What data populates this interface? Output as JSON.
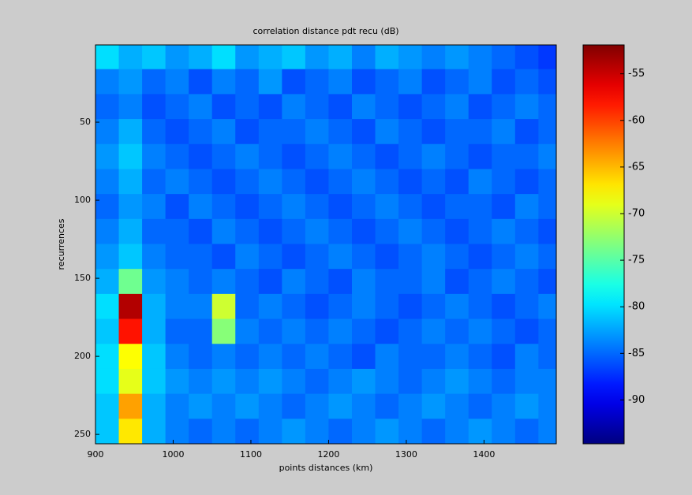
{
  "chart_data": {
    "type": "heatmap",
    "title": "correlation distance pdt recu (dB)",
    "xlabel": "points distances (km)",
    "ylabel": "recurrences",
    "x": [
      915,
      945,
      975,
      1005,
      1035,
      1065,
      1095,
      1125,
      1155,
      1185,
      1215,
      1245,
      1275,
      1305,
      1335,
      1365,
      1395,
      1425,
      1455,
      1485
    ],
    "y": [
      8,
      24,
      40,
      56,
      72,
      88,
      104,
      120,
      136,
      152,
      168,
      184,
      200,
      216,
      232,
      248
    ],
    "values": [
      [
        -80,
        -82,
        -81,
        -83,
        -82,
        -80,
        -83,
        -82,
        -81,
        -83,
        -82,
        -84,
        -82,
        -83,
        -84,
        -83,
        -84,
        -85,
        -86,
        -87
      ],
      [
        -84,
        -83,
        -85,
        -84,
        -86,
        -84,
        -85,
        -83,
        -86,
        -85,
        -84,
        -86,
        -85,
        -84,
        -86,
        -85,
        -84,
        -86,
        -85,
        -86
      ],
      [
        -85,
        -84,
        -86,
        -85,
        -84,
        -86,
        -85,
        -86,
        -84,
        -85,
        -86,
        -84,
        -85,
        -86,
        -85,
        -84,
        -86,
        -85,
        -84,
        -85
      ],
      [
        -84,
        -82,
        -85,
        -86,
        -85,
        -84,
        -86,
        -85,
        -85,
        -84,
        -85,
        -86,
        -84,
        -85,
        -86,
        -85,
        -85,
        -84,
        -86,
        -85
      ],
      [
        -83,
        -81,
        -84,
        -85,
        -86,
        -85,
        -84,
        -85,
        -86,
        -85,
        -84,
        -85,
        -86,
        -85,
        -84,
        -85,
        -86,
        -85,
        -85,
        -84
      ],
      [
        -84,
        -82,
        -85,
        -84,
        -85,
        -86,
        -85,
        -84,
        -85,
        -86,
        -85,
        -84,
        -85,
        -86,
        -85,
        -86,
        -84,
        -85,
        -86,
        -85
      ],
      [
        -85,
        -83,
        -84,
        -86,
        -84,
        -85,
        -86,
        -85,
        -84,
        -85,
        -86,
        -85,
        -84,
        -85,
        -86,
        -85,
        -85,
        -86,
        -84,
        -85
      ],
      [
        -84,
        -82,
        -85,
        -85,
        -86,
        -84,
        -85,
        -86,
        -85,
        -84,
        -85,
        -86,
        -85,
        -84,
        -85,
        -86,
        -85,
        -84,
        -85,
        -86
      ],
      [
        -83,
        -81,
        -84,
        -85,
        -85,
        -86,
        -84,
        -85,
        -86,
        -85,
        -84,
        -85,
        -86,
        -85,
        -84,
        -85,
        -86,
        -85,
        -84,
        -85
      ],
      [
        -82,
        -74,
        -83,
        -84,
        -85,
        -84,
        -85,
        -86,
        -84,
        -85,
        -86,
        -84,
        -85,
        -85,
        -84,
        -86,
        -85,
        -84,
        -85,
        -86
      ],
      [
        -80,
        -54,
        -82,
        -84,
        -84,
        -70,
        -85,
        -84,
        -85,
        -86,
        -85,
        -84,
        -85,
        -86,
        -85,
        -84,
        -85,
        -86,
        -85,
        -84
      ],
      [
        -81,
        -58,
        -82,
        -85,
        -85,
        -73,
        -84,
        -85,
        -84,
        -85,
        -84,
        -85,
        -86,
        -85,
        -84,
        -85,
        -84,
        -85,
        -86,
        -85
      ],
      [
        -80,
        -68,
        -81,
        -84,
        -85,
        -84,
        -85,
        -84,
        -85,
        -84,
        -85,
        -86,
        -84,
        -85,
        -85,
        -84,
        -85,
        -86,
        -84,
        -85
      ],
      [
        -80,
        -69,
        -81,
        -83,
        -84,
        -83,
        -84,
        -83,
        -84,
        -85,
        -84,
        -83,
        -84,
        -85,
        -84,
        -83,
        -84,
        -85,
        -84,
        -84
      ],
      [
        -81,
        -64,
        -82,
        -84,
        -83,
        -84,
        -83,
        -84,
        -85,
        -84,
        -83,
        -84,
        -85,
        -84,
        -83,
        -84,
        -85,
        -84,
        -83,
        -84
      ],
      [
        -81,
        -67,
        -82,
        -84,
        -85,
        -84,
        -85,
        -84,
        -83,
        -84,
        -85,
        -84,
        -83,
        -84,
        -85,
        -84,
        -83,
        -84,
        -85,
        -84
      ]
    ],
    "xlim": [
      900,
      1493
    ],
    "xticks": [
      900,
      1000,
      1100,
      1200,
      1300,
      1400
    ],
    "ylim": [
      0.5,
      256
    ],
    "y_reversed": true,
    "yticks": [
      50,
      100,
      150,
      200,
      250
    ],
    "colormap": "jet",
    "clim": [
      -94.7,
      -51.9
    ],
    "cticks": [
      -55,
      -60,
      -65,
      -70,
      -75,
      -80,
      -85,
      -90
    ]
  }
}
